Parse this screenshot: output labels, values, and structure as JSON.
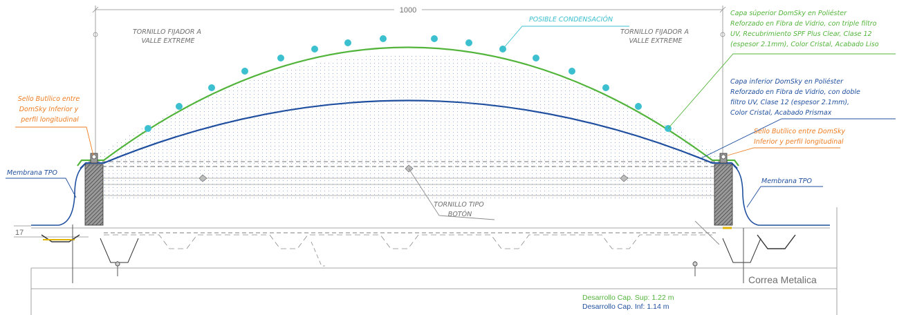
{
  "dimensions": {
    "width": "1000",
    "height": "17"
  },
  "labels": {
    "screw_left": [
      "TORNILLO FIJADOR A",
      "VALLE EXTREME"
    ],
    "screw_right": [
      "TORNILLO FIJADOR A",
      "VALLE EXTREME"
    ],
    "condensation": "POSIBLE CONDENSACIÓN",
    "upper_layer": [
      "Capa súperior DomSky en Poliéster",
      "Reforzado en Fibra de Vidrio, con triple filtro",
      "UV, Recubrimiento SPF Plus Clear, Clase 12",
      "(espesor 2.1mm), Color Cristal, Acabado Liso"
    ],
    "lower_layer": [
      "Capa inferior DomSky en Poliéster",
      "Reforzado en Fibra de Vidrio, con doble",
      "filtro UV, Clase 12 (espesor 2.1mm),",
      "Color Cristal, Acabado Prismax"
    ],
    "seal_left": [
      "Sello Butílico entre",
      "DomSky Inferior y",
      "perfil longitudinal"
    ],
    "seal_right": [
      "Sello Butílico entre DomSky",
      "Inferior y perfil longitudinal"
    ],
    "membrane_left": "Membrana TPO",
    "membrane_right": "Membrana TPO",
    "button_screw": [
      "TORNILLO TIPO",
      "BOTÓN"
    ],
    "purlin": "Correa Metalica",
    "dev_upper": "Desarrollo Cap. Sup: 1.22 m",
    "dev_lower": "Desarrollo Cap. Inf: 1.14 m"
  },
  "colors": {
    "green": "#52b43a",
    "blue": "#1f4f9e",
    "orange": "#ee7d22",
    "cyan": "#3cc0cf",
    "gray": "#6d6d6d"
  }
}
